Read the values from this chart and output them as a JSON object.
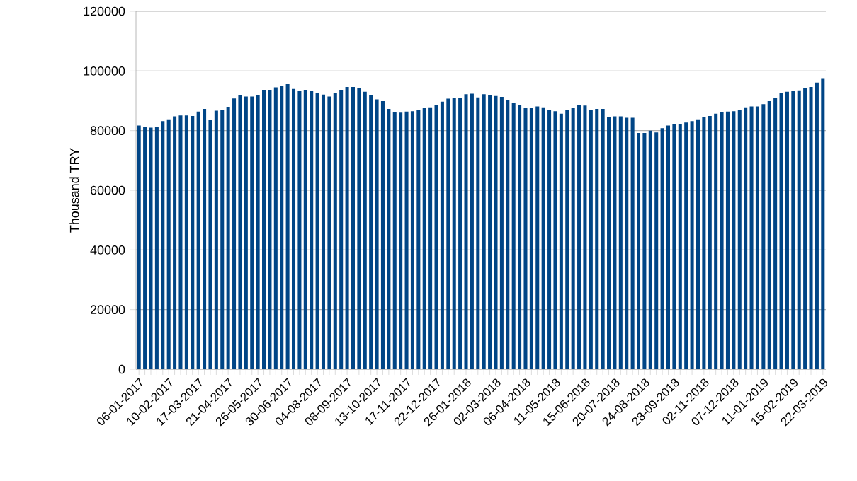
{
  "chart_data": {
    "type": "bar",
    "ylabel": "Thousand TRY",
    "color": "#004586",
    "grid": "y",
    "ylim": [
      0,
      120000
    ],
    "yticks": [
      0,
      20000,
      40000,
      60000,
      80000,
      100000,
      120000
    ],
    "categories": [
      "06-01-2017",
      null,
      null,
      null,
      null,
      "10-02-2017",
      null,
      null,
      null,
      null,
      "17-03-2017",
      null,
      null,
      null,
      null,
      "21-04-2017",
      null,
      null,
      null,
      null,
      "26-05-2017",
      null,
      null,
      null,
      null,
      "30-06-2017",
      null,
      null,
      null,
      null,
      "04-08-2017",
      null,
      null,
      null,
      null,
      "08-09-2017",
      null,
      null,
      null,
      null,
      "13-10-2017",
      null,
      null,
      null,
      null,
      "17-11-2017",
      null,
      null,
      null,
      null,
      "22-12-2017",
      null,
      null,
      null,
      null,
      "26-01-2018",
      null,
      null,
      null,
      null,
      "02-03-2018",
      null,
      null,
      null,
      null,
      "06-04-2018",
      null,
      null,
      null,
      null,
      "11-05-2018",
      null,
      null,
      null,
      null,
      "15-06-2018",
      null,
      null,
      null,
      null,
      "20-07-2018",
      null,
      null,
      null,
      null,
      "24-08-2018",
      null,
      null,
      null,
      null,
      "28-09-2018",
      null,
      null,
      null,
      null,
      "02-11-2018",
      null,
      null,
      null,
      null,
      "07-12-2018",
      null,
      null,
      null,
      null,
      "11-01-2019",
      null,
      null,
      null,
      null,
      "15-02-2019",
      null,
      null,
      null,
      null,
      "22-03-2019"
    ],
    "values": [
      81700,
      81300,
      81000,
      81300,
      83200,
      83800,
      84800,
      85100,
      85100,
      84900,
      86400,
      87300,
      83700,
      86700,
      86800,
      88000,
      90800,
      91800,
      91400,
      91400,
      91900,
      93700,
      93700,
      94500,
      95100,
      95600,
      94000,
      93400,
      93700,
      93400,
      92700,
      92100,
      91400,
      92700,
      93700,
      94600,
      94600,
      94200,
      93000,
      91800,
      90500,
      89900,
      87300,
      86200,
      86000,
      86400,
      86500,
      87000,
      87500,
      87800,
      88600,
      89700,
      90700,
      91000,
      91000,
      92200,
      92400,
      91100,
      92200,
      91800,
      91600,
      91300,
      90300,
      89200,
      88600,
      87600,
      87600,
      88100,
      87800,
      86800,
      86500,
      85700,
      87000,
      87500,
      88700,
      88400,
      87000,
      87300,
      87300,
      84600,
      84800,
      84800,
      84300,
      84300,
      79200,
      79200,
      80000,
      79400,
      80800,
      81700,
      82100,
      82100,
      82700,
      83200,
      83800,
      84600,
      84900,
      85700,
      86200,
      86400,
      86500,
      87000,
      87800,
      88100,
      88100,
      88900,
      89900,
      91000,
      92700,
      93000,
      93200,
      93500,
      94200,
      94600,
      96100,
      97600
    ]
  }
}
